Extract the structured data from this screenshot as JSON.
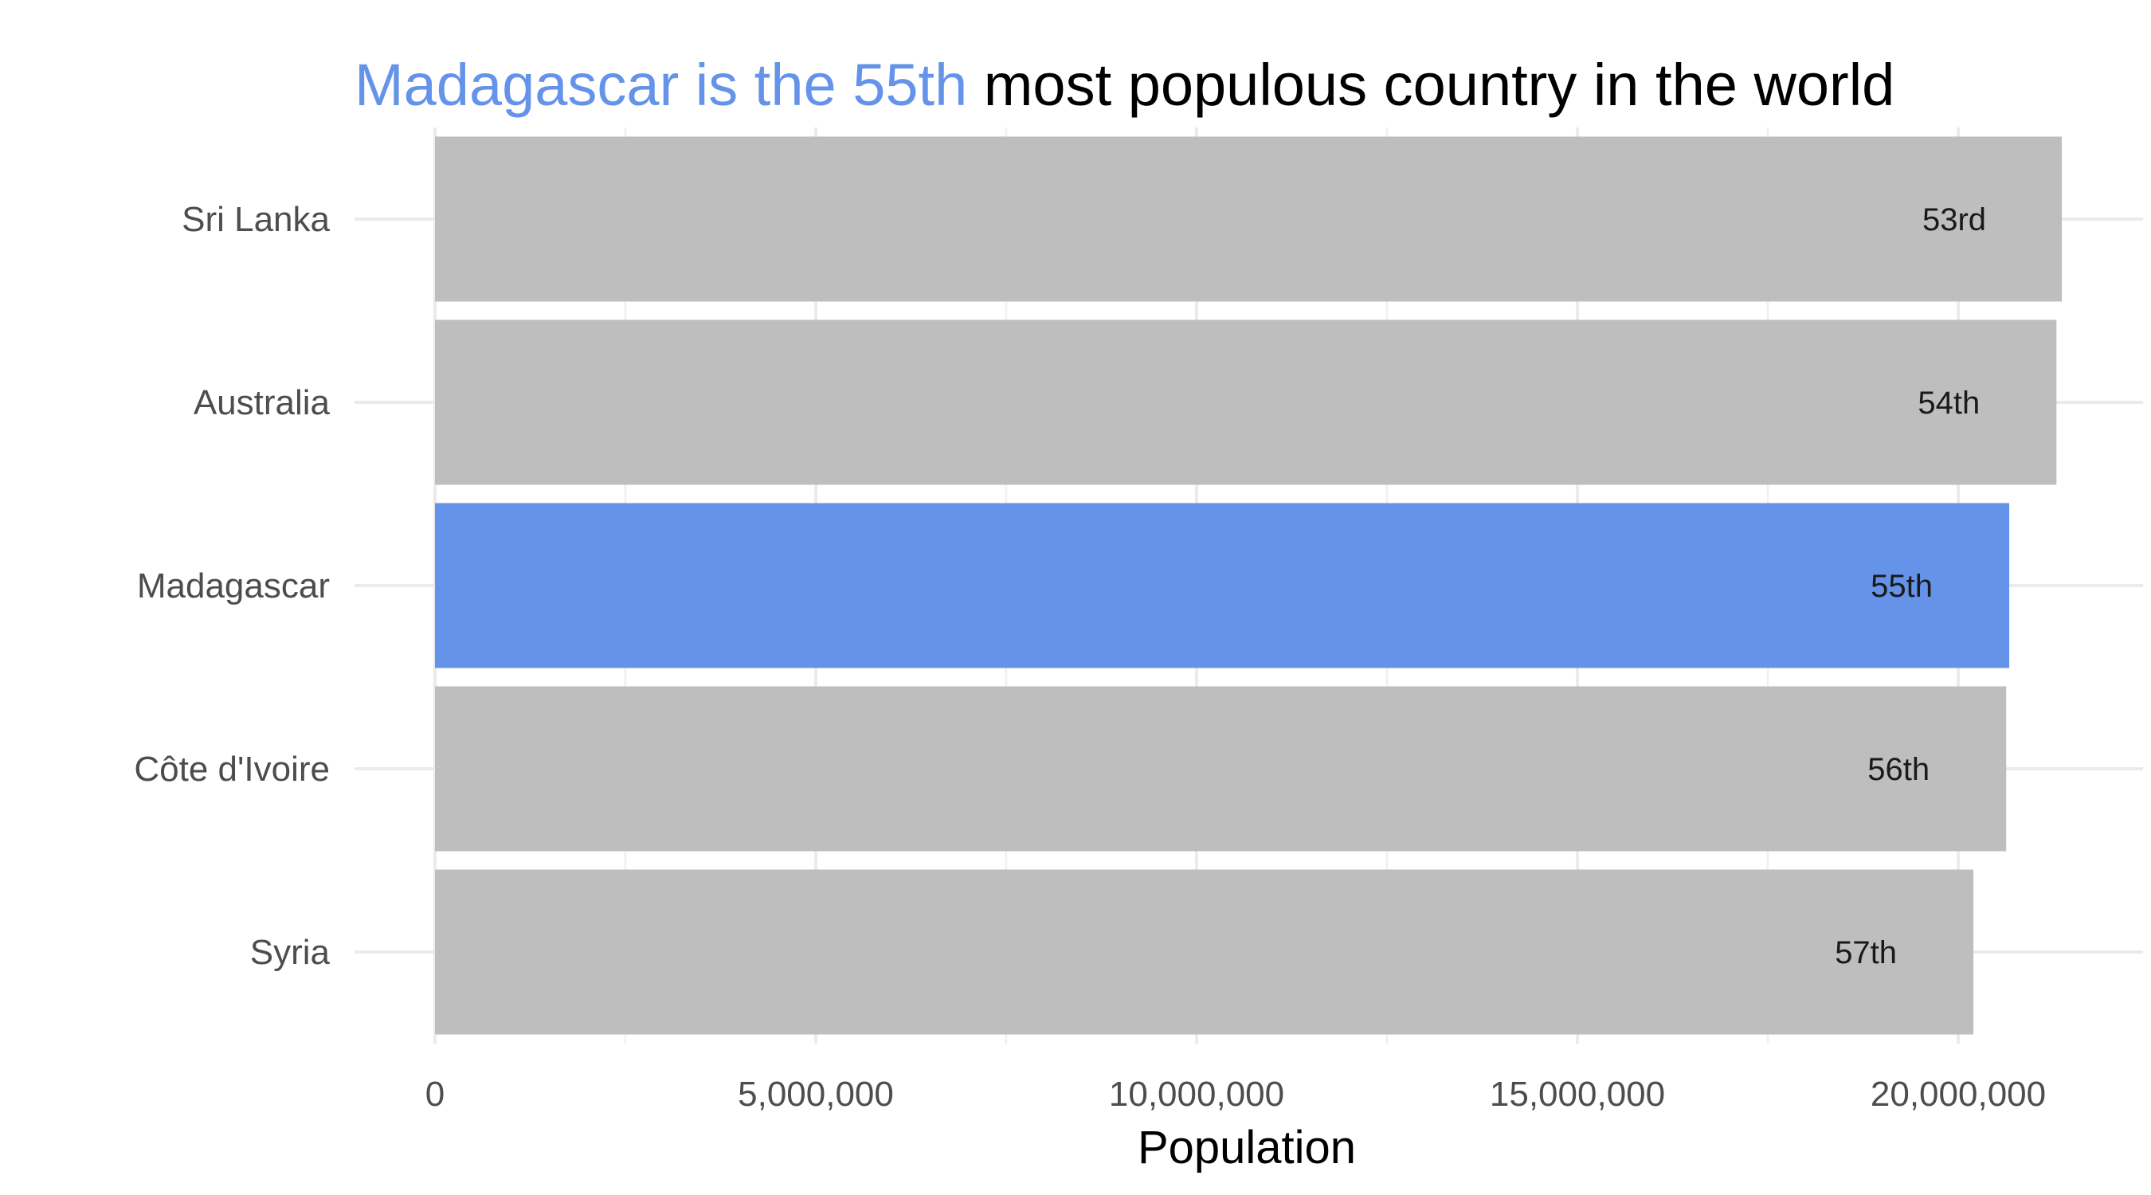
{
  "colors": {
    "highlight": "#6593e9",
    "bar": "#bebebe",
    "title_highlight": "#6593e9",
    "title_rest": "#000000",
    "text": "#4d4d4d",
    "grid": "#ebebeb",
    "background": "#ffffff"
  },
  "chart_data": {
    "type": "bar",
    "orientation": "horizontal",
    "title": {
      "highlight": "Madagascar is the 55th",
      "rest": " most populous country in the world"
    },
    "xlabel": "Population",
    "ylabel": "",
    "xlim": [
      0,
      22000000
    ],
    "x_ticks": [
      0,
      5000000,
      10000000,
      15000000,
      20000000
    ],
    "x_tick_labels": [
      "0",
      "5,000,000",
      "10,000,000",
      "15,000,000",
      "20,000,000"
    ],
    "categories": [
      "Sri Lanka",
      "Australia",
      "Madagascar",
      "Côte d'Ivoire",
      "Syria"
    ],
    "values": [
      21360000,
      21290000,
      20670000,
      20630000,
      20200000
    ],
    "ranks": [
      "53rd",
      "54th",
      "55th",
      "56th",
      "57th"
    ],
    "highlighted": "Madagascar",
    "grid": true,
    "legend": "none"
  }
}
